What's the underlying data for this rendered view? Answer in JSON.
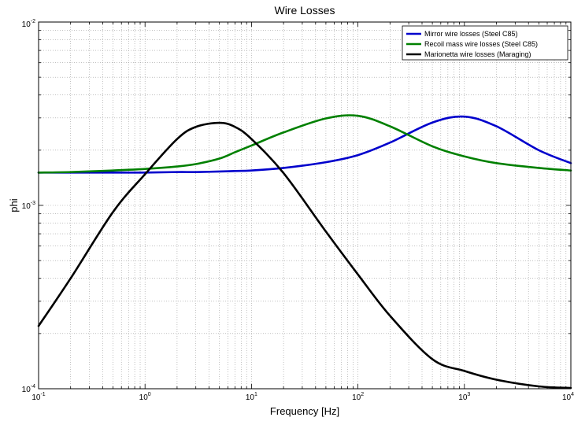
{
  "chart_data": {
    "type": "line",
    "title": "Wire Losses",
    "xlabel": "Frequency [Hz]",
    "ylabel": "phi",
    "xscale": "log",
    "yscale": "log",
    "xlim": [
      0.1,
      10000
    ],
    "ylim": [
      0.0001,
      0.01
    ],
    "grid": true,
    "grid_style": "dotted",
    "legend_position": "top-right",
    "x_ticks": [
      {
        "base": "10",
        "exp": "-1"
      },
      {
        "base": "10",
        "exp": "0"
      },
      {
        "base": "10",
        "exp": "1"
      },
      {
        "base": "10",
        "exp": "2"
      },
      {
        "base": "10",
        "exp": "3"
      },
      {
        "base": "10",
        "exp": "4"
      }
    ],
    "y_ticks": [
      {
        "base": "10",
        "exp": "-4"
      },
      {
        "base": "10",
        "exp": "-3"
      },
      {
        "base": "10",
        "exp": "-2"
      }
    ],
    "x": [
      0.1,
      0.2,
      0.5,
      1,
      2,
      3,
      5,
      7,
      10,
      20,
      50,
      100,
      200,
      500,
      1000,
      2000,
      5000,
      10000
    ],
    "series": [
      {
        "name": "Mirror wire losses (Steel C85)",
        "color": "#0000cc",
        "values": [
          0.00151,
          0.00151,
          0.00151,
          0.00151,
          0.00152,
          0.00152,
          0.00153,
          0.00154,
          0.00155,
          0.0016,
          0.00172,
          0.00188,
          0.0022,
          0.00283,
          0.00305,
          0.0027,
          0.002,
          0.0017
        ]
      },
      {
        "name": "Recoil mass wire losses (Steel C85)",
        "color": "#008000",
        "values": [
          0.00151,
          0.00152,
          0.00155,
          0.00158,
          0.00163,
          0.00168,
          0.0018,
          0.00195,
          0.00212,
          0.0025,
          0.00298,
          0.00308,
          0.0027,
          0.0021,
          0.00185,
          0.0017,
          0.0016,
          0.00155
        ]
      },
      {
        "name": "Marionetta wire losses (Maraging)",
        "color": "#000000",
        "values": [
          0.00022,
          0.0004,
          0.00092,
          0.00148,
          0.0023,
          0.00268,
          0.00282,
          0.00268,
          0.0023,
          0.0015,
          0.00072,
          0.00042,
          0.00025,
          0.000145,
          0.000125,
          0.000112,
          0.000103,
          0.000101
        ]
      }
    ]
  }
}
